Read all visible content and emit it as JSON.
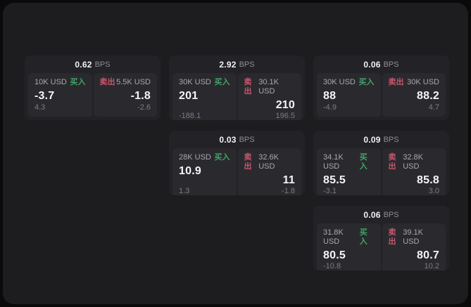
{
  "labels": {
    "unit": "BPS",
    "buy": "买入",
    "sell": "卖出"
  },
  "colors": {
    "backdrop": "#0a0a0a",
    "panel_bg": "#1d1d1f",
    "card_bg": "#232327",
    "tile_bg": "#2a2a2e",
    "buy_green": "#3fa468",
    "sell_red": "#c9566e",
    "text_primary": "#f5f5f7",
    "text_secondary": "#a7a7ad",
    "text_muted": "#7b7b82"
  },
  "cards": [
    {
      "bps": "0.62",
      "buy": {
        "size": "10K USD",
        "price": "-3.7",
        "sub": "4.3"
      },
      "sell": {
        "size": "5.5K USD",
        "price": "-1.8",
        "sub": "-2.6"
      }
    },
    {
      "bps": "2.92",
      "buy": {
        "size": "30K USD",
        "price": "201",
        "sub": "-188.1"
      },
      "sell": {
        "size": "30.1K USD",
        "price": "210",
        "sub": "196.5"
      }
    },
    {
      "bps": "0.06",
      "buy": {
        "size": "30K USD",
        "price": "88",
        "sub": "-4.9"
      },
      "sell": {
        "size": "30K USD",
        "price": "88.2",
        "sub": "4.7"
      }
    },
    {
      "bps": "0.03",
      "buy": {
        "size": "28K USD",
        "price": "10.9",
        "sub": "1.3"
      },
      "sell": {
        "size": "32.6K USD",
        "price": "11",
        "sub": "-1.8"
      }
    },
    {
      "bps": "0.09",
      "buy": {
        "size": "34.1K USD",
        "price": "85.5",
        "sub": "-3.1"
      },
      "sell": {
        "size": "32.8K USD",
        "price": "85.8",
        "sub": "3.0"
      }
    },
    {
      "bps": "0.06",
      "buy": {
        "size": "31.8K USD",
        "price": "80.5",
        "sub": "-10.8"
      },
      "sell": {
        "size": "39.1K USD",
        "price": "80.7",
        "sub": "10.2"
      }
    }
  ]
}
